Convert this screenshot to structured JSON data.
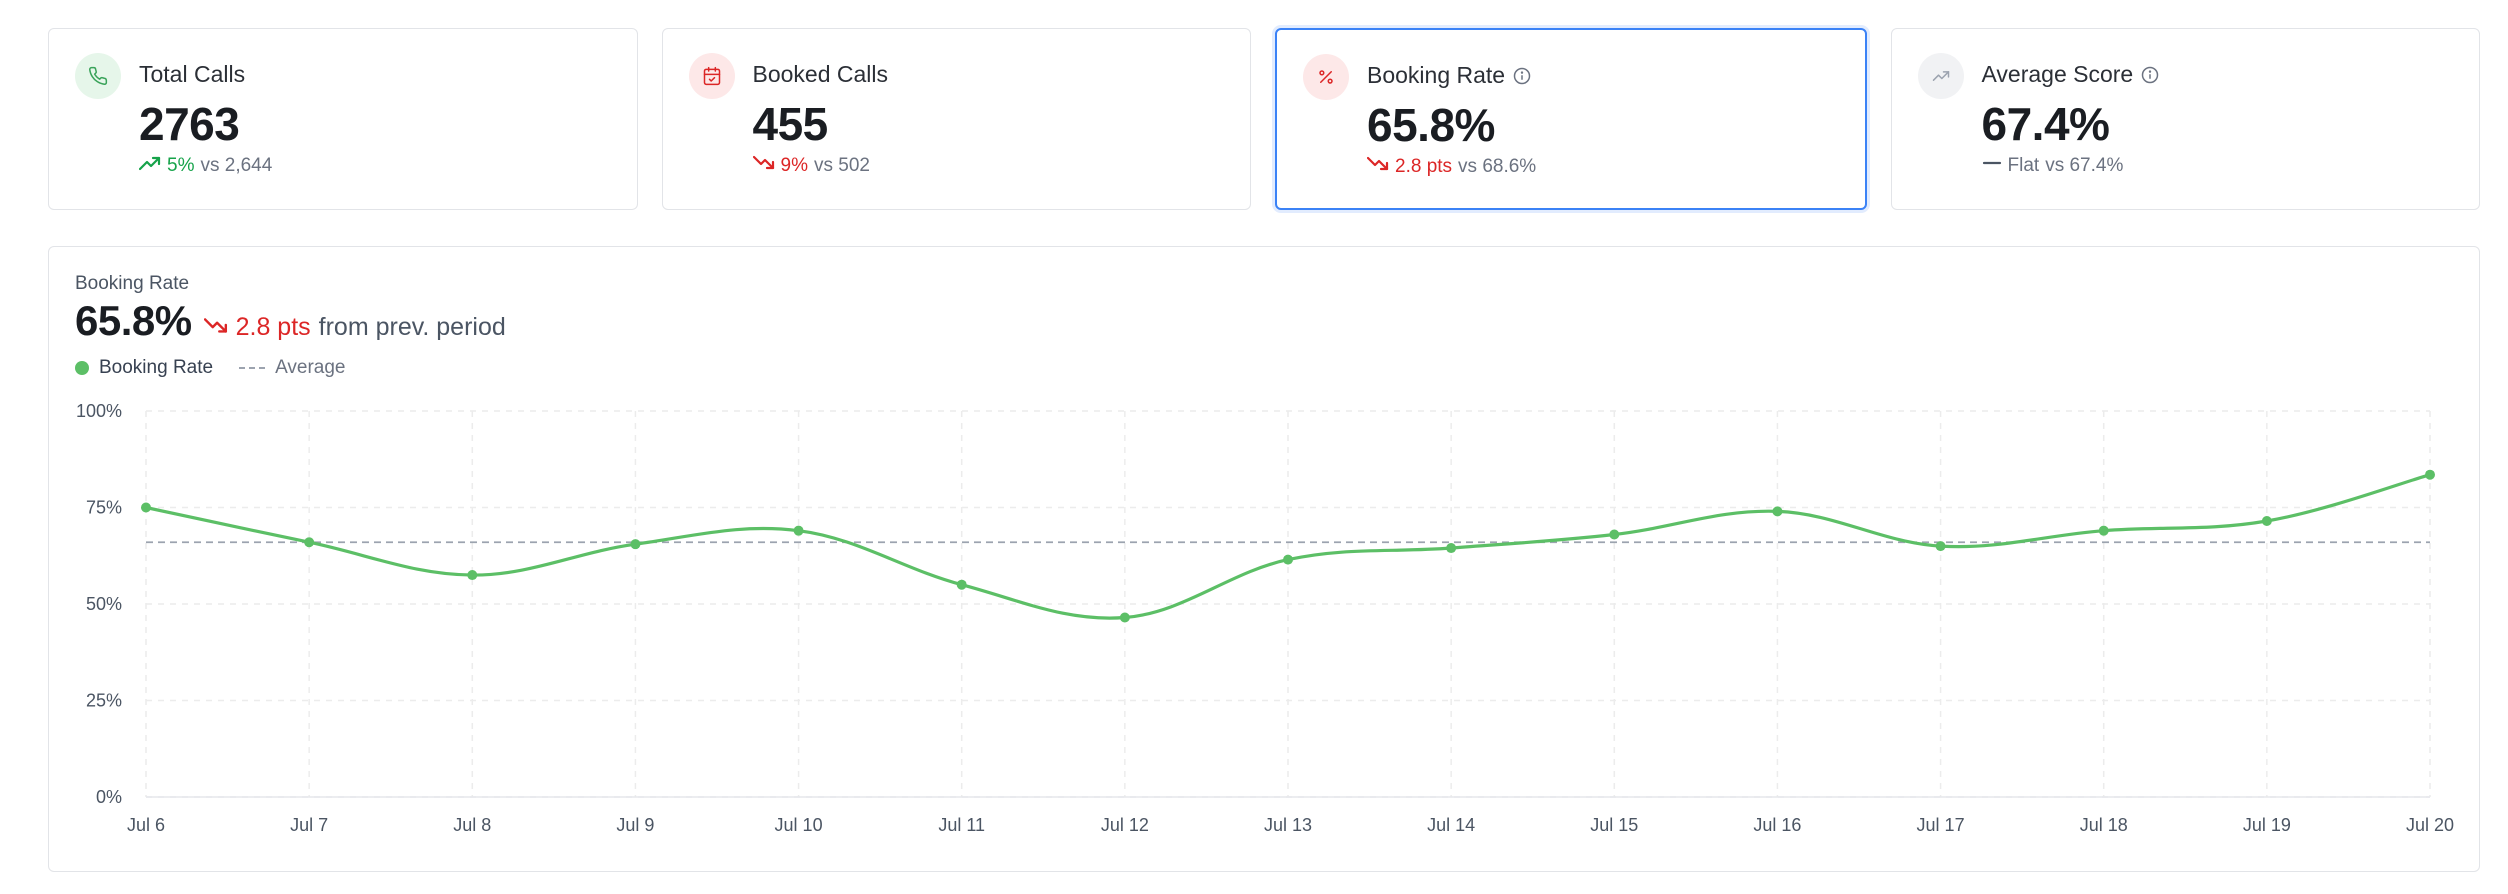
{
  "cards": [
    {
      "title": "Total Calls",
      "value": "2763",
      "delta_pct": "5%",
      "delta_dir": "up",
      "vs": "vs 2,644",
      "icon": "phone-icon",
      "info": false,
      "selected": false
    },
    {
      "title": "Booked Calls",
      "value": "455",
      "delta_pct": "9%",
      "delta_dir": "down",
      "vs": "vs 502",
      "icon": "calendar-check-icon",
      "info": false,
      "selected": false
    },
    {
      "title": "Booking Rate",
      "value": "65.8%",
      "delta_pct": "2.8 pts",
      "delta_dir": "down",
      "vs": "vs 68.6%",
      "icon": "percent-icon",
      "info": true,
      "selected": true
    },
    {
      "title": "Average Score",
      "value": "67.4%",
      "delta_pct": "Flat",
      "delta_dir": "flat",
      "vs": "vs 67.4%",
      "icon": "trend-up-icon",
      "info": true,
      "selected": false
    }
  ],
  "colors": {
    "up": "#16a34a",
    "down": "#dc2626",
    "flat": "#6b7280",
    "series": "#5cbf66",
    "selected_border": "#3b82f6"
  },
  "chart_panel": {
    "label": "Booking Rate",
    "value": "65.8%",
    "change": "2.8 pts",
    "change_suffix": "from prev. period",
    "legend_series": "Booking Rate",
    "legend_average": "Average"
  },
  "chart_data": {
    "type": "line",
    "x": [
      "Jul 6",
      "Jul 7",
      "Jul 8",
      "Jul 9",
      "Jul 10",
      "Jul 11",
      "Jul 12",
      "Jul 13",
      "Jul 14",
      "Jul 15",
      "Jul 16",
      "Jul 17",
      "Jul 18",
      "Jul 19",
      "Jul 20"
    ],
    "series": [
      {
        "name": "Booking Rate",
        "values": [
          75,
          66,
          57.5,
          65.5,
          69,
          55,
          46.5,
          61.5,
          64.5,
          68,
          74,
          65,
          69,
          71.5,
          83.5
        ]
      }
    ],
    "average": 66,
    "ylim": [
      0,
      100
    ],
    "yticks": [
      "0%",
      "25%",
      "50%",
      "75%",
      "100%"
    ],
    "ytick_values": [
      0,
      25,
      50,
      75,
      100
    ],
    "grid": true,
    "legend": "top-left"
  }
}
